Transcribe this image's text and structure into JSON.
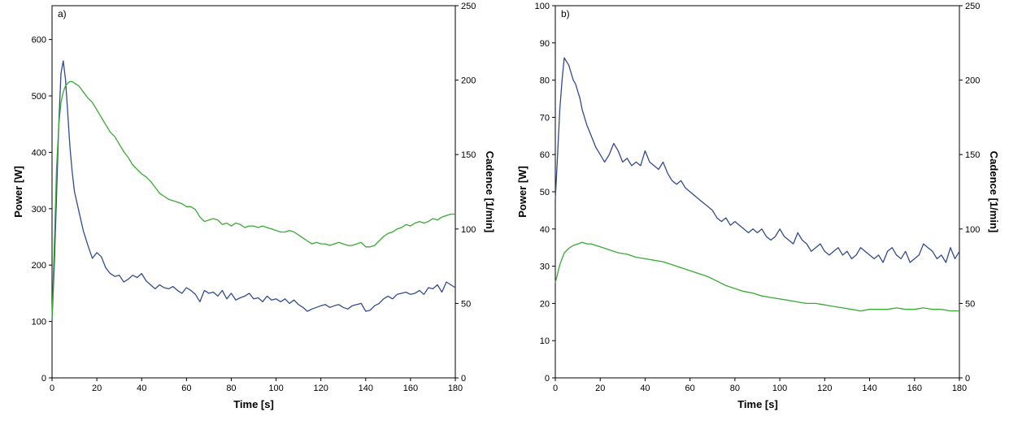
{
  "chart_data": [
    {
      "type": "line",
      "panel_label": "a)",
      "xlabel": "Time [s]",
      "ylabel_left": "Power [W]",
      "ylabel_right": "Cadence [1/min]",
      "xlim": [
        0,
        180
      ],
      "ylim_left": [
        0,
        660
      ],
      "ylim_right": [
        0,
        250
      ],
      "xticks": [
        "0",
        "20",
        "40",
        "60",
        "80",
        "100",
        "120",
        "140",
        "160",
        "180"
      ],
      "yticks_left": [
        "0",
        "100",
        "200",
        "300",
        "400",
        "500",
        "600"
      ],
      "yticks_right": [
        "0",
        "50",
        "100",
        "150",
        "200",
        "250"
      ],
      "grid": false,
      "series": [
        {
          "axis": "left",
          "color": "#334b8e",
          "x": [
            0,
            1,
            2,
            3,
            4,
            5,
            6,
            7,
            8,
            9,
            10,
            12,
            14,
            16,
            18,
            20,
            22,
            24,
            26,
            28,
            30,
            32,
            34,
            36,
            38,
            40,
            42,
            44,
            46,
            48,
            50,
            52,
            54,
            56,
            58,
            60,
            62,
            64,
            66,
            68,
            70,
            72,
            74,
            76,
            78,
            80,
            82,
            84,
            86,
            88,
            90,
            92,
            94,
            96,
            98,
            100,
            102,
            104,
            106,
            108,
            110,
            112,
            114,
            116,
            118,
            120,
            122,
            124,
            126,
            128,
            130,
            132,
            134,
            136,
            138,
            140,
            142,
            144,
            146,
            148,
            150,
            152,
            154,
            156,
            158,
            160,
            162,
            164,
            166,
            168,
            170,
            172,
            174,
            176,
            178,
            180
          ],
          "y": [
            100,
            200,
            320,
            450,
            540,
            562,
            530,
            470,
            410,
            365,
            330,
            295,
            260,
            235,
            212,
            222,
            215,
            195,
            185,
            180,
            182,
            170,
            175,
            182,
            178,
            185,
            172,
            165,
            158,
            165,
            160,
            158,
            162,
            155,
            150,
            160,
            155,
            148,
            135,
            155,
            150,
            152,
            145,
            155,
            140,
            150,
            138,
            142,
            145,
            150,
            140,
            142,
            135,
            145,
            138,
            140,
            135,
            140,
            132,
            138,
            130,
            125,
            118,
            122,
            125,
            128,
            130,
            125,
            128,
            130,
            125,
            122,
            128,
            130,
            132,
            118,
            120,
            128,
            132,
            140,
            145,
            140,
            148,
            150,
            152,
            148,
            150,
            155,
            148,
            160,
            158,
            165,
            152,
            170,
            165,
            160
          ]
        },
        {
          "axis": "right",
          "color": "#3aa935",
          "x": [
            0,
            1,
            2,
            3,
            4,
            5,
            6,
            7,
            8,
            9,
            10,
            11,
            12,
            14,
            16,
            18,
            20,
            22,
            24,
            26,
            28,
            30,
            32,
            34,
            36,
            38,
            40,
            42,
            44,
            46,
            48,
            50,
            52,
            54,
            56,
            58,
            60,
            62,
            64,
            66,
            68,
            70,
            72,
            74,
            76,
            78,
            80,
            82,
            84,
            86,
            88,
            90,
            92,
            94,
            96,
            98,
            100,
            102,
            104,
            106,
            108,
            110,
            112,
            114,
            116,
            118,
            120,
            122,
            124,
            126,
            128,
            130,
            132,
            134,
            136,
            138,
            140,
            142,
            144,
            146,
            148,
            150,
            152,
            154,
            156,
            158,
            160,
            162,
            164,
            166,
            168,
            170,
            172,
            174,
            176,
            178,
            180
          ],
          "y": [
            40,
            90,
            140,
            170,
            185,
            192,
            196,
            198,
            199,
            199,
            198,
            197,
            196,
            192,
            188,
            185,
            180,
            175,
            170,
            165,
            162,
            157,
            152,
            148,
            143,
            140,
            137,
            135,
            132,
            128,
            124,
            122,
            120,
            119,
            118,
            117,
            115,
            115,
            113,
            108,
            105,
            106,
            107,
            106,
            103,
            104,
            102,
            104,
            103,
            101,
            102,
            102,
            101,
            102,
            101,
            100,
            99,
            98,
            98,
            99,
            98,
            96,
            94,
            92,
            90,
            91,
            90,
            90,
            89,
            90,
            91,
            90,
            89,
            89,
            90,
            91,
            88,
            88,
            89,
            92,
            95,
            97,
            98,
            100,
            101,
            103,
            102,
            104,
            105,
            104,
            105,
            107,
            106,
            108,
            109,
            110,
            110
          ]
        }
      ]
    },
    {
      "type": "line",
      "panel_label": "b)",
      "xlabel": "Time [s]",
      "ylabel_left": "Power [W]",
      "ylabel_right": "Cadence [1/min]",
      "xlim": [
        0,
        180
      ],
      "ylim_left": [
        0,
        100
      ],
      "ylim_right": [
        0,
        250
      ],
      "xticks": [
        "0",
        "20",
        "40",
        "60",
        "80",
        "100",
        "120",
        "140",
        "160",
        "180"
      ],
      "yticks_left": [
        "0",
        "10",
        "20",
        "30",
        "40",
        "50",
        "60",
        "70",
        "80",
        "90",
        "100"
      ],
      "yticks_right": [
        "0",
        "50",
        "100",
        "150",
        "200",
        "250"
      ],
      "grid": false,
      "series": [
        {
          "axis": "left",
          "color": "#334b8e",
          "x": [
            0,
            1,
            2,
            3,
            4,
            5,
            6,
            7,
            8,
            9,
            10,
            11,
            12,
            14,
            16,
            18,
            20,
            22,
            24,
            26,
            28,
            30,
            32,
            34,
            36,
            38,
            40,
            42,
            44,
            46,
            48,
            50,
            52,
            54,
            56,
            58,
            60,
            62,
            64,
            66,
            68,
            70,
            72,
            74,
            76,
            78,
            80,
            82,
            84,
            86,
            88,
            90,
            92,
            94,
            96,
            98,
            100,
            102,
            104,
            106,
            108,
            110,
            112,
            114,
            116,
            118,
            120,
            122,
            124,
            126,
            128,
            130,
            132,
            134,
            136,
            138,
            140,
            142,
            144,
            146,
            148,
            150,
            152,
            154,
            156,
            158,
            160,
            162,
            164,
            166,
            168,
            170,
            172,
            174,
            176,
            178,
            180
          ],
          "y": [
            48,
            60,
            72,
            80,
            86,
            85,
            84,
            82,
            80,
            79,
            77,
            75,
            72,
            68,
            65,
            62,
            60,
            58,
            60,
            63,
            61,
            58,
            59,
            57,
            58,
            57,
            61,
            58,
            57,
            56,
            58,
            55,
            53,
            52,
            53,
            51,
            50,
            49,
            48,
            47,
            46,
            45,
            43,
            42,
            43,
            41,
            42,
            41,
            40,
            39,
            40,
            39,
            40,
            38,
            37,
            38,
            40,
            38,
            37,
            36,
            39,
            37,
            36,
            34,
            35,
            36,
            34,
            33,
            34,
            35,
            33,
            34,
            32,
            33,
            35,
            34,
            33,
            32,
            33,
            31,
            34,
            35,
            33,
            32,
            34,
            31,
            32,
            33,
            36,
            35,
            34,
            32,
            33,
            31,
            35,
            32,
            34
          ]
        },
        {
          "axis": "right",
          "color": "#3aa935",
          "x": [
            0,
            1,
            2,
            3,
            4,
            6,
            8,
            10,
            12,
            14,
            16,
            18,
            20,
            24,
            28,
            32,
            36,
            40,
            44,
            48,
            52,
            56,
            60,
            64,
            68,
            72,
            76,
            80,
            84,
            88,
            92,
            96,
            100,
            104,
            108,
            112,
            116,
            120,
            124,
            128,
            132,
            136,
            140,
            144,
            148,
            152,
            156,
            160,
            164,
            168,
            172,
            176,
            180
          ],
          "y": [
            64,
            70,
            76,
            80,
            84,
            87,
            89,
            90,
            91,
            90,
            90,
            89,
            88,
            86,
            84,
            83,
            81,
            80,
            79,
            78,
            76,
            74,
            72,
            70,
            68,
            65,
            62,
            60,
            58,
            57,
            55,
            54,
            53,
            52,
            51,
            50,
            50,
            49,
            48,
            47,
            46,
            45,
            46,
            46,
            46,
            47,
            46,
            46,
            47,
            46,
            46,
            45,
            45
          ]
        }
      ]
    }
  ]
}
